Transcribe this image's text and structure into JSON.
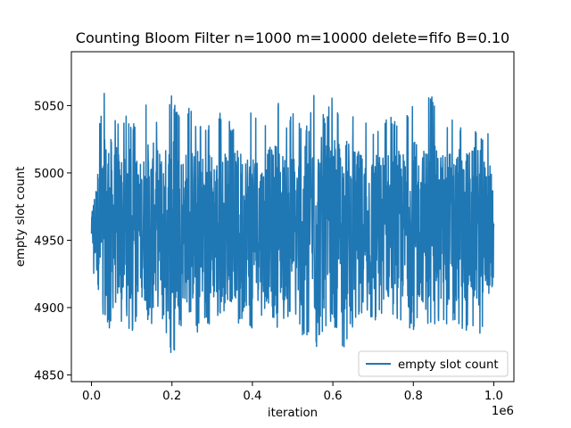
{
  "chart_data": {
    "type": "line",
    "title": "Counting Bloom Filter n=1000 m=10000 delete=fifo B=0.10",
    "xlabel": "iteration",
    "ylabel": "empty slot count",
    "x_offset_label": "1e6",
    "xlim": [
      -0.05,
      1.05
    ],
    "ylim": [
      4845,
      5090
    ],
    "x_ticks": [
      0.0,
      0.2,
      0.4,
      0.6,
      0.8,
      1.0
    ],
    "x_tick_labels": [
      "0.0",
      "0.2",
      "0.4",
      "0.6",
      "0.8",
      "1.0"
    ],
    "y_ticks": [
      4850,
      4900,
      4950,
      5000,
      5050
    ],
    "y_tick_labels": [
      "4850",
      "4900",
      "4950",
      "5000",
      "5050"
    ],
    "grid": false,
    "legend_position": "lower right",
    "color": "#1f77b4",
    "series": [
      {
        "name": "empty slot count",
        "x": [
          0.0,
          0.02,
          0.04,
          0.06,
          0.08,
          0.1,
          0.12,
          0.14,
          0.16,
          0.18,
          0.2,
          0.22,
          0.24,
          0.26,
          0.28,
          0.3,
          0.32,
          0.34,
          0.36,
          0.38,
          0.4,
          0.42,
          0.44,
          0.46,
          0.48,
          0.5,
          0.52,
          0.54,
          0.56,
          0.58,
          0.6,
          0.62,
          0.64,
          0.66,
          0.68,
          0.7,
          0.72,
          0.74,
          0.76,
          0.78,
          0.8,
          0.82,
          0.84,
          0.86,
          0.88,
          0.9,
          0.92,
          0.94,
          0.96,
          0.98,
          1.0
        ],
        "y": [
          4965,
          5040,
          5077,
          5040,
          5045,
          5040,
          5030,
          5060,
          5040,
          5040,
          5060,
          5040,
          5050,
          5040,
          5038,
          5040,
          5045,
          5040,
          5030,
          5055,
          5045,
          5035,
          5045,
          5060,
          5040,
          5045,
          5040,
          5035,
          5078,
          5040,
          5058,
          5045,
          5055,
          5040,
          5045,
          5035,
          5040,
          5045,
          5038,
          5040,
          5055,
          5042,
          5065,
          5040,
          5040,
          5045,
          5035,
          5040,
          5030,
          5030,
          5028
        ],
        "y_low": [
          4930,
          4900,
          4885,
          4880,
          4890,
          4880,
          4900,
          4890,
          4875,
          4890,
          4858,
          4885,
          4895,
          4880,
          4890,
          4885,
          4895,
          4885,
          4880,
          4895,
          4880,
          4895,
          4890,
          4885,
          4890,
          4895,
          4880,
          4875,
          4870,
          4880,
          4890,
          4865,
          4880,
          4890,
          4895,
          4885,
          4895,
          4890,
          4885,
          4890,
          4880,
          4895,
          4880,
          4890,
          4885,
          4890,
          4880,
          4885,
          4870,
          4895,
          4918
        ]
      }
    ]
  }
}
